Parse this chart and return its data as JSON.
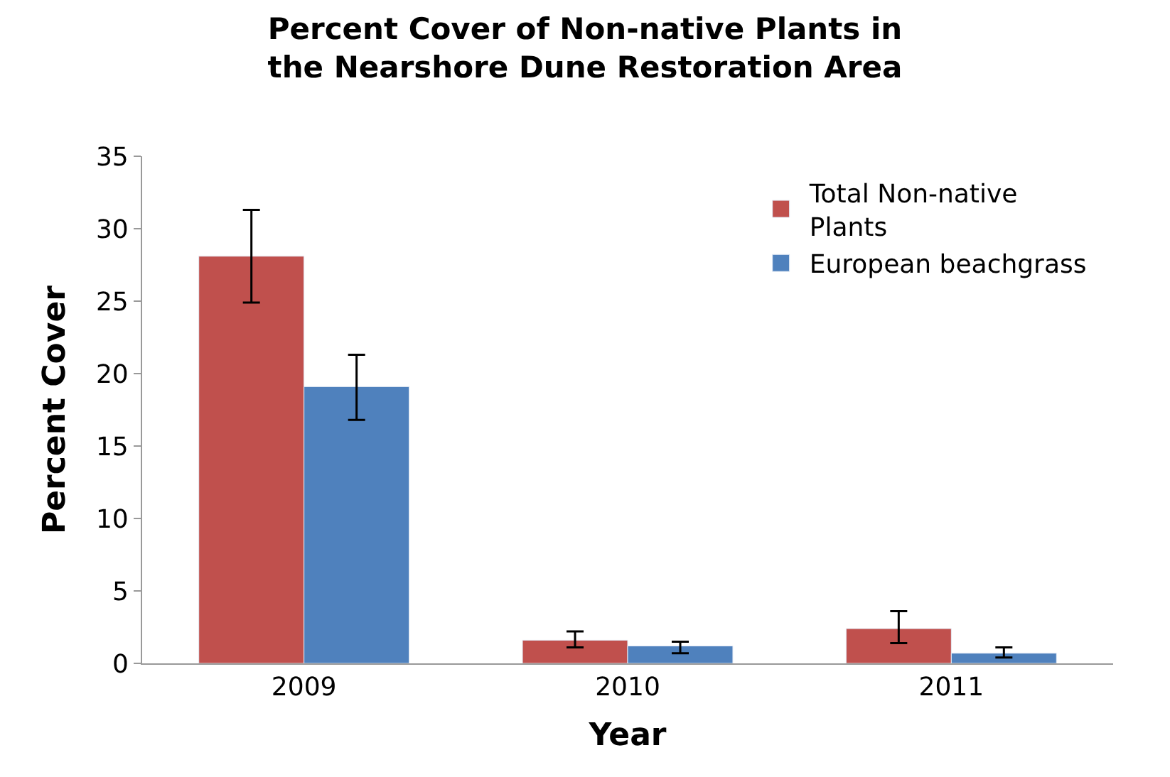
{
  "chart_data": {
    "type": "bar",
    "title": "Percent Cover of Non-native Plants in the Nearshore Dune Restoration Area",
    "xlabel": "Year",
    "ylabel": "Percent Cover",
    "categories": [
      "2009",
      "2010",
      "2011"
    ],
    "series": [
      {
        "name": "Total Non-native Plants",
        "color": "#c0504d",
        "values": [
          28.1,
          1.6,
          2.4
        ],
        "errors": [
          [
            24.9,
            31.3
          ],
          [
            1.1,
            2.2
          ],
          [
            1.4,
            3.6
          ]
        ]
      },
      {
        "name": "European beachgrass",
        "color": "#4f81bd",
        "values": [
          19.1,
          1.2,
          0.7
        ],
        "errors": [
          [
            16.8,
            21.3
          ],
          [
            0.7,
            1.5
          ],
          [
            0.4,
            1.1
          ]
        ]
      }
    ],
    "ylim": [
      0,
      35
    ],
    "yticks": [
      0,
      5,
      10,
      15,
      20,
      25,
      30,
      35
    ],
    "legend": "top right"
  }
}
